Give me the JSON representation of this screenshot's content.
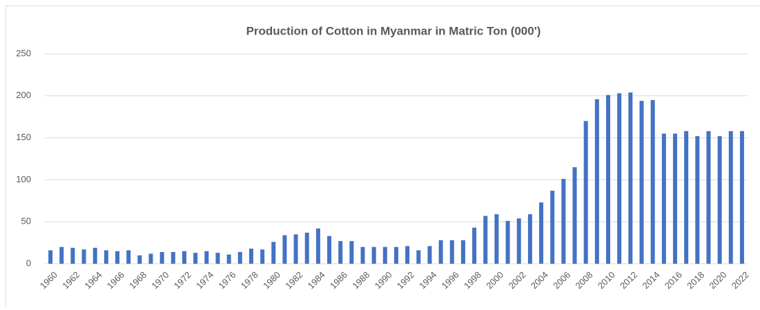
{
  "chart_data": {
    "type": "bar",
    "title": "Production of Cotton in Myanmar in Matric Ton (000')",
    "categories": [
      "1960",
      null,
      "1962",
      null,
      "1964",
      null,
      "1966",
      null,
      "1968",
      null,
      "1970",
      null,
      "1972",
      null,
      "1974",
      null,
      "1976",
      null,
      "1978",
      null,
      "1980",
      null,
      "1982",
      null,
      "1984",
      null,
      "1986",
      null,
      "1988",
      null,
      "1990",
      null,
      "1992",
      null,
      "1994",
      null,
      "1996",
      null,
      "1998",
      null,
      "2000",
      null,
      "2002",
      null,
      "2004",
      null,
      "2006",
      null,
      "2008",
      null,
      "2010",
      null,
      "2012",
      null,
      "2014",
      null,
      "2016",
      null,
      "2018",
      null,
      "2020",
      null,
      "2022"
    ],
    "values": [
      16,
      20,
      19,
      17,
      19,
      16,
      15,
      16,
      10,
      12,
      14,
      14,
      15,
      13,
      15,
      13,
      11,
      14,
      18,
      17,
      26,
      34,
      35,
      37,
      42,
      33,
      27,
      27,
      20,
      20,
      20,
      20,
      21,
      16,
      21,
      28,
      28,
      28,
      43,
      57,
      59,
      51,
      54,
      59,
      73,
      87,
      101,
      115,
      170,
      196,
      201,
      203,
      204,
      194,
      195,
      155,
      155,
      158,
      152,
      158,
      152,
      158,
      158
    ],
    "color": "#4472c4",
    "ylim": [
      0,
      250
    ],
    "yticks": [
      0,
      50,
      100,
      150,
      200,
      250
    ],
    "grid": true
  }
}
